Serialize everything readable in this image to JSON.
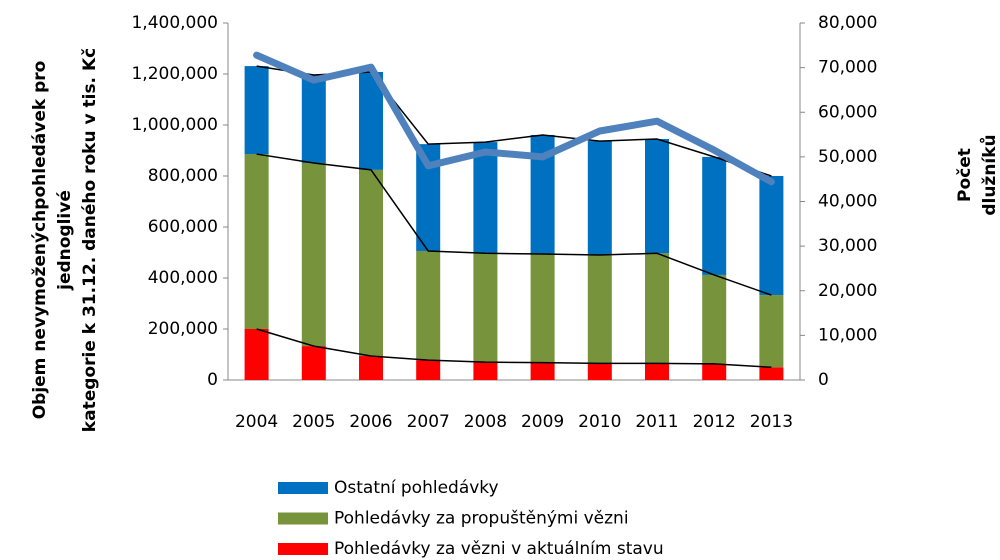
{
  "chart_data": {
    "type": "stacked-bar-line",
    "ylabel": [
      "Objem nevymoženýchpohledávek pro",
      "jednoglivé",
      "kategorie k 31.12. daného roku v tis. Kč"
    ],
    "y2label": [
      "Počet",
      "dlužníků"
    ],
    "categories": [
      "2004",
      "2005",
      "2006",
      "2007",
      "2008",
      "2009",
      "2010",
      "2011",
      "2012",
      "2013"
    ],
    "series": [
      {
        "name": "Pohledávky za vězni v aktuálním stavu",
        "color": "#ff0000",
        "values": [
          200000,
          133000,
          94000,
          78000,
          70000,
          68000,
          65000,
          65000,
          63000,
          50000
        ]
      },
      {
        "name": "Pohledávky za propuštěnými vězni",
        "color": "#77933c",
        "values": [
          686000,
          718000,
          730000,
          428000,
          427000,
          426000,
          425000,
          432000,
          349000,
          283000
        ]
      },
      {
        "name": "Ostatní pohledávky",
        "color": "#0070c0",
        "values": [
          345000,
          345000,
          384000,
          419000,
          436000,
          467000,
          447000,
          448000,
          463000,
          467000
        ]
      }
    ],
    "line": {
      "color": "#4f81bd",
      "axis": "y2",
      "values": [
        72800,
        67200,
        70100,
        48000,
        51100,
        50000,
        55800,
        58000,
        51500,
        44400
      ]
    },
    "ylim": [
      0,
      1400000
    ],
    "yticks": [
      0,
      {
        "value": 200000,
        "label": "200,000"
      },
      {
        "value": 400000,
        "label": "400,000"
      },
      {
        "value": 600000,
        "label": "600,000"
      },
      {
        "value": 800000,
        "label": "800,000"
      },
      {
        "value": 1000000,
        "label": "1,000,000"
      },
      {
        "value": 1200000,
        "label": "1,200,000"
      },
      {
        "value": 1400000,
        "label": "1,400,000"
      }
    ],
    "y2lim": [
      0,
      80000
    ],
    "y2ticks": [
      0,
      {
        "value": 10000,
        "label": "10,000"
      },
      {
        "value": 20000,
        "label": "20,000"
      },
      {
        "value": 30000,
        "label": "30,000"
      },
      {
        "value": 40000,
        "label": "40,000"
      },
      {
        "value": 50000,
        "label": "50,000"
      },
      {
        "value": 60000,
        "label": "60,000"
      },
      {
        "value": 70000,
        "label": "70,000"
      },
      {
        "value": 80000,
        "label": "80,000"
      }
    ]
  }
}
